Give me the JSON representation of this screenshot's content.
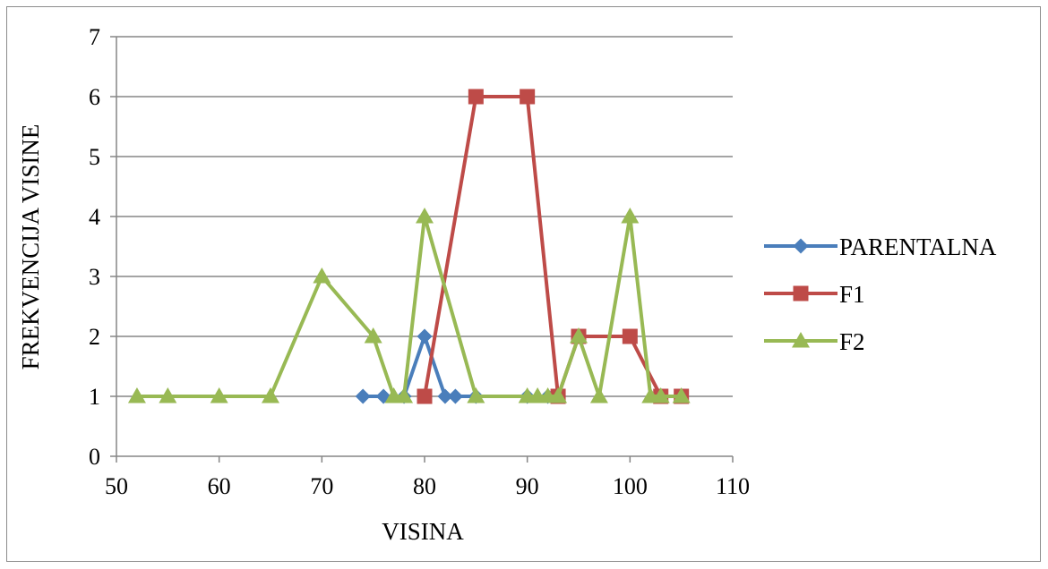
{
  "chart_data": {
    "type": "line",
    "title": "",
    "xlabel": "VISINA",
    "ylabel": "FREKVENCIJA VISINE",
    "xlim": [
      50,
      110
    ],
    "ylim": [
      0,
      7
    ],
    "xticks": [
      50,
      60,
      70,
      80,
      90,
      100,
      110
    ],
    "yticks": [
      0,
      1,
      2,
      3,
      4,
      5,
      6,
      7
    ],
    "grid": "horizontal",
    "legend_position": "right",
    "series": [
      {
        "name": "PARENTALNA",
        "color": "#4a7ebb",
        "marker": "diamond",
        "x": [
          74,
          76,
          78,
          80,
          82,
          83,
          85,
          90,
          92,
          93
        ],
        "y": [
          1,
          1,
          1,
          2,
          1,
          1,
          1,
          1,
          1,
          1
        ]
      },
      {
        "name": "F1",
        "color": "#be4b48",
        "marker": "square",
        "x": [
          80,
          85,
          90,
          93,
          95,
          100,
          103,
          105
        ],
        "y": [
          1,
          6,
          6,
          1,
          2,
          2,
          1,
          1
        ]
      },
      {
        "name": "F2",
        "color": "#98b954",
        "marker": "triangle",
        "x": [
          52,
          55,
          60,
          65,
          70,
          75,
          77,
          78,
          80,
          85,
          90,
          91,
          92,
          93,
          95,
          97,
          100,
          102,
          103,
          105
        ],
        "y": [
          1,
          1,
          1,
          1,
          3,
          2,
          1,
          1,
          4,
          1,
          1,
          1,
          1,
          1,
          2,
          1,
          4,
          1,
          1,
          1
        ]
      }
    ]
  }
}
